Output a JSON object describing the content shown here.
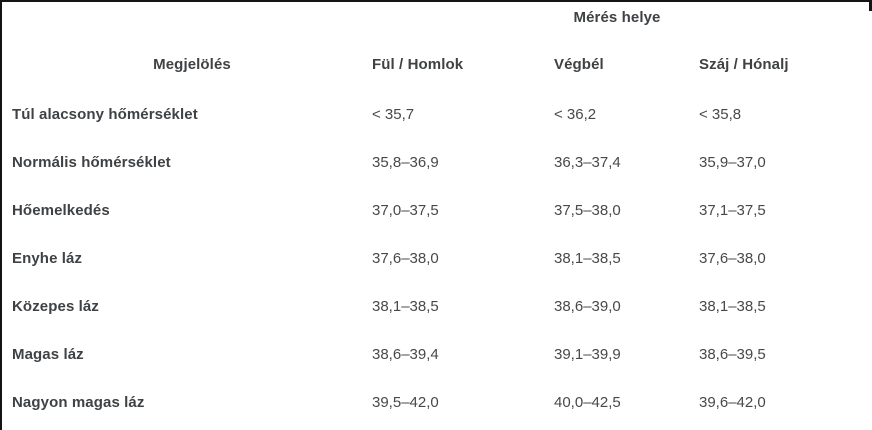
{
  "panel": {
    "background_color": "#ffffff",
    "border_color": "#141414",
    "text_color": "#3f4245"
  },
  "table": {
    "group_header": "Mérés helye",
    "columns": [
      "Megjelölés",
      "Fül / Homlok",
      "Végbél",
      "Száj / Hónalj"
    ],
    "rows": [
      [
        "Túl alacsony hőmérséklet",
        "< 35,7",
        "< 36,2",
        "< 35,8"
      ],
      [
        "Normális hőmérséklet",
        "35,8–36,9",
        "36,3–37,4",
        "35,9–37,0"
      ],
      [
        "Hőemelkedés",
        "37,0–37,5",
        "37,5–38,0",
        "37,1–37,5"
      ],
      [
        "Enyhe láz",
        "37,6–38,0",
        "38,1–38,5",
        "37,6–38,0"
      ],
      [
        "Közepes láz",
        "38,1–38,5",
        "38,6–39,0",
        "38,1–38,5"
      ],
      [
        "Magas láz",
        "38,6–39,4",
        "39,1–39,9",
        "38,6–39,5"
      ],
      [
        "Nagyon magas láz",
        "39,5–42,0",
        "40,0–42,5",
        "39,6–42,0"
      ]
    ]
  },
  "chart_data": {
    "type": "table",
    "title": "Mérés helye",
    "columns": [
      "Megjelölés",
      "Fül / Homlok",
      "Végbél",
      "Száj / Hónalj"
    ],
    "rows": [
      [
        "Túl alacsony hőmérséklet",
        "< 35,7",
        "< 36,2",
        "< 35,8"
      ],
      [
        "Normális hőmérséklet",
        "35,8–36,9",
        "36,3–37,4",
        "35,9–37,0"
      ],
      [
        "Hőemelkedés",
        "37,0–37,5",
        "37,5–38,0",
        "37,1–37,5"
      ],
      [
        "Enyhe láz",
        "37,6–38,0",
        "38,1–38,5",
        "37,6–38,0"
      ],
      [
        "Közepes láz",
        "38,1–38,5",
        "38,6–39,0",
        "38,1–38,5"
      ],
      [
        "Magas láz",
        "38,6–39,4",
        "39,1–39,9",
        "38,6–39,5"
      ],
      [
        "Nagyon magas láz",
        "39,5–42,0",
        "40,0–42,5",
        "39,6–42,0"
      ]
    ]
  }
}
